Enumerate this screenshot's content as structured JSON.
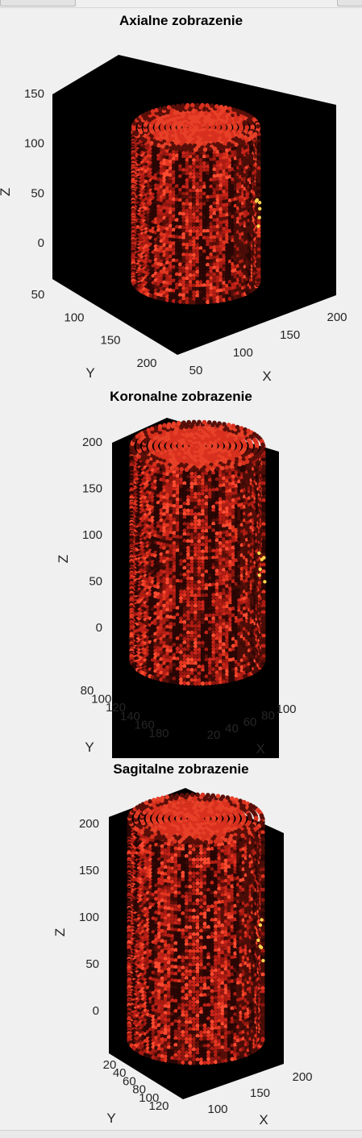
{
  "colors": {
    "background": "#f0f0f0",
    "axes_box": "#000000",
    "voxel_base": "#c8241a",
    "voxel_dark": "#3a0a06",
    "voxel_bright": "#ff4a30",
    "hot_spot": "#ffd24a"
  },
  "chart_data": [
    {
      "type": "scatter",
      "title": "Axialne zobrazenie",
      "xlabel": "X",
      "ylabel": "Y",
      "zlabel": "Z",
      "x_ticks": [
        50,
        100,
        150,
        200
      ],
      "y_ticks": [
        50,
        100,
        150,
        200
      ],
      "z_ticks": [
        0,
        50,
        100,
        150
      ],
      "xlim": [
        30,
        215
      ],
      "ylim": [
        30,
        215
      ],
      "zlim": [
        -35,
        150
      ],
      "colormap": "hot",
      "grid": false
    },
    {
      "type": "scatter",
      "title": "Koronalne zobrazenie",
      "xlabel": "X",
      "ylabel": "Y",
      "zlabel": "Z",
      "x_ticks": [
        20,
        40,
        60,
        80,
        100
      ],
      "y_ticks": [
        80,
        100,
        120,
        140,
        160,
        180
      ],
      "z_ticks": [
        0,
        50,
        100,
        150,
        200
      ],
      "xlim": [
        10,
        110
      ],
      "ylim": [
        70,
        185
      ],
      "zlim": [
        -45,
        215
      ],
      "colormap": "hot",
      "grid": false
    },
    {
      "type": "scatter",
      "title": "Sagitalne zobrazenie",
      "xlabel": "X",
      "ylabel": "Y",
      "zlabel": "Z",
      "x_ticks": [
        100,
        150,
        200
      ],
      "y_ticks": [
        20,
        40,
        60,
        80,
        100,
        120
      ],
      "z_ticks": [
        0,
        50,
        100,
        150,
        200
      ],
      "xlim": [
        70,
        210
      ],
      "ylim": [
        10,
        125
      ],
      "zlim": [
        -45,
        215
      ],
      "colormap": "hot",
      "grid": false
    }
  ]
}
